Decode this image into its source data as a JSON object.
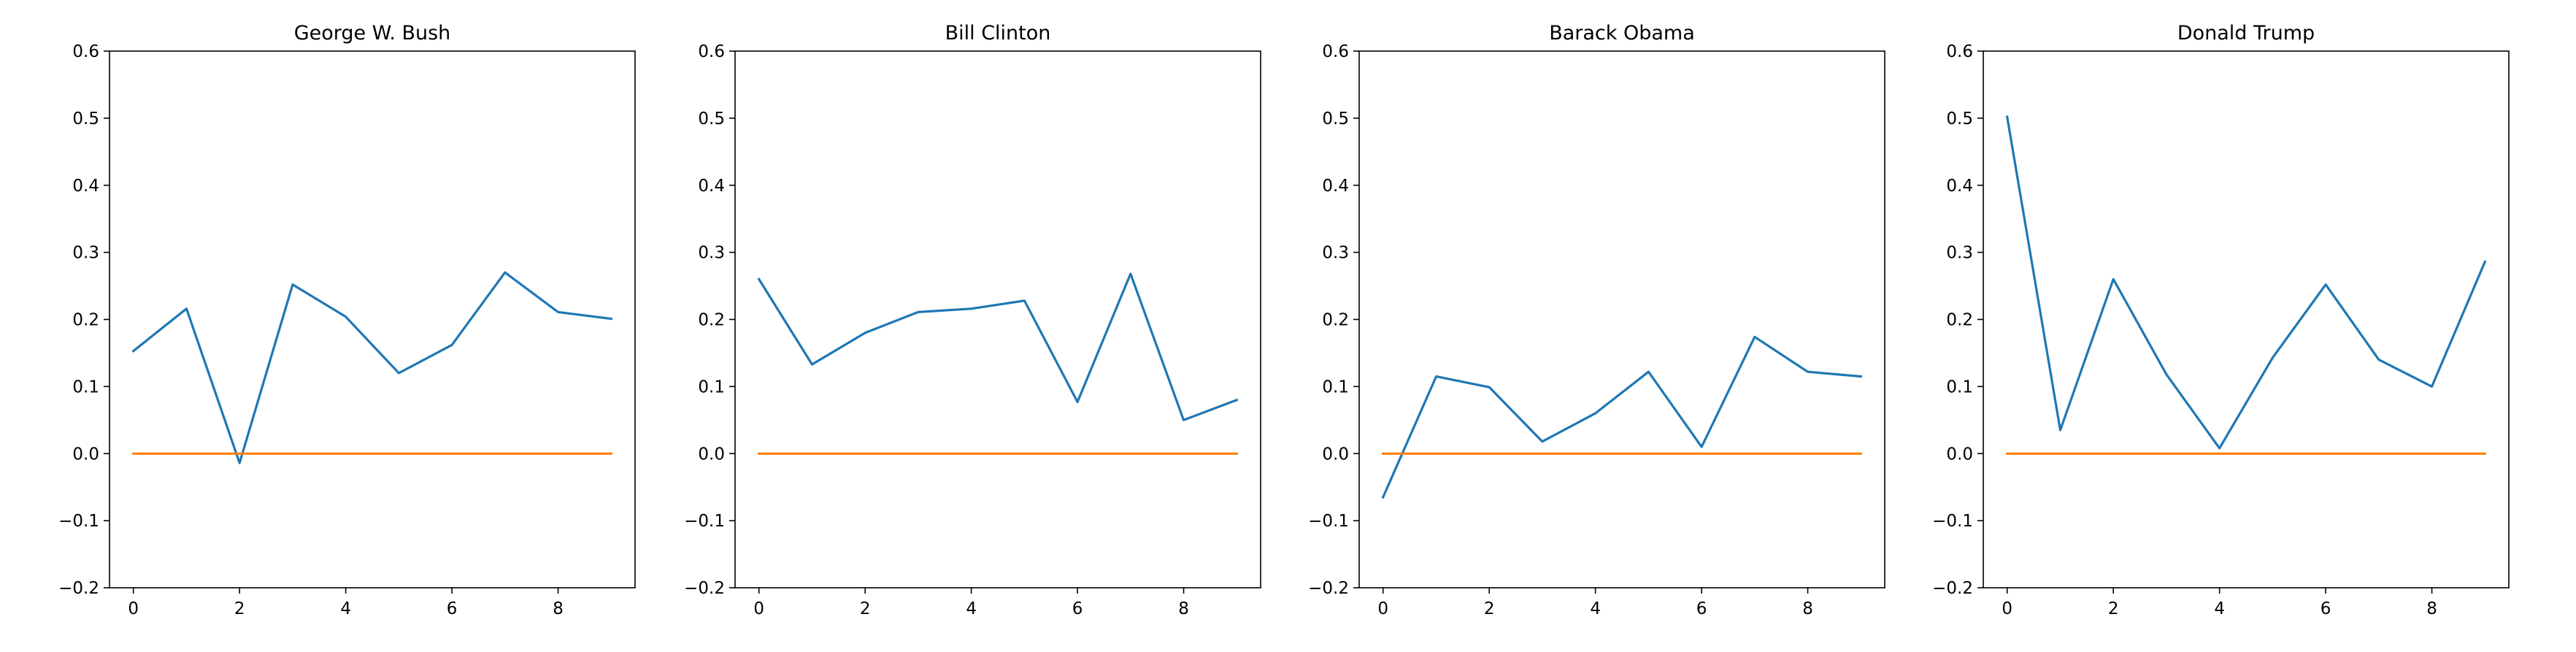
{
  "chart_data": [
    {
      "type": "line",
      "title": "George W. Bush",
      "x": [
        0,
        1,
        2,
        3,
        4,
        5,
        6,
        7,
        8,
        9
      ],
      "series": [
        {
          "values": [
            0.153,
            0.216,
            -0.014,
            0.252,
            0.204,
            0.12,
            0.162,
            0.27,
            0.211,
            0.201
          ],
          "color": "#1f77b4"
        },
        {
          "values": [
            0,
            0,
            0,
            0,
            0,
            0,
            0,
            0,
            0,
            0
          ],
          "color": "#ff7f0e"
        }
      ],
      "xticks": [
        "0",
        "2",
        "4",
        "6",
        "8"
      ],
      "yticks": [
        "−0.2",
        "−0.1",
        "0.0",
        "0.1",
        "0.2",
        "0.3",
        "0.4",
        "0.5",
        "0.6"
      ],
      "xlim": [
        -0.45,
        9.45
      ],
      "ylim": [
        -0.2,
        0.6
      ],
      "grid": false
    },
    {
      "type": "line",
      "title": "Bill Clinton",
      "x": [
        0,
        1,
        2,
        3,
        4,
        5,
        6,
        7,
        8,
        9
      ],
      "series": [
        {
          "values": [
            0.26,
            0.133,
            0.18,
            0.211,
            0.216,
            0.228,
            0.077,
            0.268,
            0.05,
            0.08
          ],
          "color": "#1f77b4"
        },
        {
          "values": [
            0,
            0,
            0,
            0,
            0,
            0,
            0,
            0,
            0,
            0
          ],
          "color": "#ff7f0e"
        }
      ],
      "xticks": [
        "0",
        "2",
        "4",
        "6",
        "8"
      ],
      "yticks": [
        "−0.2",
        "−0.1",
        "0.0",
        "0.1",
        "0.2",
        "0.3",
        "0.4",
        "0.5",
        "0.6"
      ],
      "xlim": [
        -0.45,
        9.45
      ],
      "ylim": [
        -0.2,
        0.6
      ],
      "grid": false
    },
    {
      "type": "line",
      "title": "Barack Obama",
      "x": [
        0,
        1,
        2,
        3,
        4,
        5,
        6,
        7,
        8,
        9
      ],
      "series": [
        {
          "values": [
            -0.065,
            0.115,
            0.099,
            0.018,
            0.06,
            0.122,
            0.01,
            0.174,
            0.122,
            0.115
          ],
          "color": "#1f77b4"
        },
        {
          "values": [
            0,
            0,
            0,
            0,
            0,
            0,
            0,
            0,
            0,
            0
          ],
          "color": "#ff7f0e"
        }
      ],
      "xticks": [
        "0",
        "2",
        "4",
        "6",
        "8"
      ],
      "yticks": [
        "−0.2",
        "−0.1",
        "0.0",
        "0.1",
        "0.2",
        "0.3",
        "0.4",
        "0.5",
        "0.6"
      ],
      "xlim": [
        -0.45,
        9.45
      ],
      "ylim": [
        -0.2,
        0.6
      ],
      "grid": false
    },
    {
      "type": "line",
      "title": "Donald Trump",
      "x": [
        0,
        1,
        2,
        3,
        4,
        5,
        6,
        7,
        8,
        9
      ],
      "series": [
        {
          "values": [
            0.502,
            0.035,
            0.26,
            0.118,
            0.008,
            0.143,
            0.252,
            0.14,
            0.1,
            0.286
          ],
          "color": "#1f77b4"
        },
        {
          "values": [
            0,
            0,
            0,
            0,
            0,
            0,
            0,
            0,
            0,
            0
          ],
          "color": "#ff7f0e"
        }
      ],
      "xticks": [
        "0",
        "2",
        "4",
        "6",
        "8"
      ],
      "yticks": [
        "−0.2",
        "−0.1",
        "0.0",
        "0.1",
        "0.2",
        "0.3",
        "0.4",
        "0.5",
        "0.6"
      ],
      "xlim": [
        -0.45,
        9.45
      ],
      "ylim": [
        -0.2,
        0.6
      ],
      "grid": false
    }
  ]
}
